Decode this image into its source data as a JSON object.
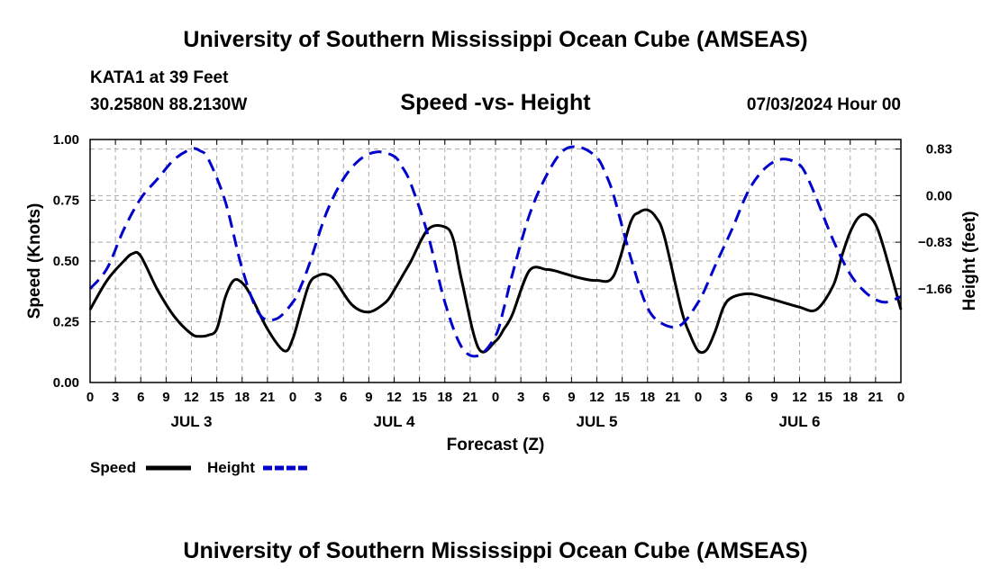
{
  "header": {
    "title": "University of Southern Mississippi Ocean Cube (AMSEAS)",
    "station": "KATA1 at 39 Feet",
    "coordinates": "30.2580N  88.2130W",
    "subtitle": "Speed -vs- Height",
    "forecast_time": "07/03/2024 Hour 00"
  },
  "footer": {
    "title": "University of Southern Mississippi Ocean Cube (AMSEAS)"
  },
  "legend": {
    "speed_label": "Speed",
    "height_label": "Height"
  },
  "colors": {
    "speed": "#000000",
    "height": "#0000cc",
    "grid": "#aaaaaa"
  },
  "chart_data": {
    "type": "line",
    "title": "Speed -vs- Height",
    "xlabel": "Forecast (Z)",
    "ylabel": "Speed (Knots)",
    "y2label": "Height (feet)",
    "x_unit": "hours from 07/03/2024 00Z",
    "xlim": [
      0,
      96
    ],
    "ylim": [
      0,
      1.0
    ],
    "y2lim": [
      -3.33,
      1.0
    ],
    "x_ticks": [
      0,
      3,
      6,
      9,
      12,
      15,
      18,
      21,
      24,
      27,
      30,
      33,
      36,
      39,
      42,
      45,
      48,
      51,
      54,
      57,
      60,
      63,
      66,
      69,
      72,
      75,
      78,
      81,
      84,
      87,
      90,
      93,
      96
    ],
    "x_tick_labels": [
      "0",
      "3",
      "6",
      "9",
      "12",
      "15",
      "18",
      "21",
      "0",
      "3",
      "6",
      "9",
      "12",
      "15",
      "18",
      "21",
      "0",
      "3",
      "6",
      "9",
      "12",
      "15",
      "18",
      "21",
      "0",
      "3",
      "6",
      "9",
      "12",
      "15",
      "18",
      "21",
      "0"
    ],
    "day_labels": [
      {
        "label": "JUL 3",
        "x": 12
      },
      {
        "label": "JUL 4",
        "x": 36
      },
      {
        "label": "JUL 5",
        "x": 60
      },
      {
        "label": "JUL 6",
        "x": 84
      }
    ],
    "y_ticks": [
      0,
      0.25,
      0.5,
      0.75,
      1.0
    ],
    "y_tick_labels": [
      "0.00",
      "0.25",
      "0.50",
      "0.75",
      "1.00"
    ],
    "y2_ticks": [
      0.83,
      0.0,
      -0.83,
      -1.66
    ],
    "y2_tick_labels": [
      "0.83",
      "0.00",
      "−0.83",
      "−1.66"
    ],
    "series": [
      {
        "name": "Speed",
        "axis": "left",
        "style": "solid",
        "x": [
          0,
          2,
          4,
          5,
          6,
          8,
          10,
          12,
          13,
          14,
          15,
          16,
          17,
          18,
          19,
          21,
          23,
          24,
          25,
          26,
          27,
          28,
          29,
          31,
          33,
          35,
          36,
          37,
          38,
          40,
          42,
          43,
          44,
          46,
          48,
          49,
          50,
          52,
          54,
          55,
          56,
          58,
          60,
          62,
          64,
          65,
          66,
          67,
          68,
          70,
          71,
          72,
          73,
          74,
          75,
          76,
          78,
          80,
          82,
          84,
          86,
          88,
          89,
          90,
          91,
          92,
          93,
          94,
          96
        ],
        "values": [
          0.3,
          0.42,
          0.5,
          0.53,
          0.52,
          0.38,
          0.27,
          0.2,
          0.19,
          0.195,
          0.22,
          0.35,
          0.42,
          0.41,
          0.36,
          0.22,
          0.13,
          0.18,
          0.3,
          0.41,
          0.44,
          0.445,
          0.42,
          0.32,
          0.29,
          0.33,
          0.38,
          0.44,
          0.5,
          0.63,
          0.64,
          0.59,
          0.42,
          0.14,
          0.17,
          0.22,
          0.28,
          0.46,
          0.465,
          0.46,
          0.45,
          0.43,
          0.42,
          0.44,
          0.66,
          0.7,
          0.71,
          0.68,
          0.6,
          0.3,
          0.2,
          0.13,
          0.135,
          0.21,
          0.31,
          0.35,
          0.365,
          0.35,
          0.33,
          0.31,
          0.3,
          0.4,
          0.52,
          0.62,
          0.68,
          0.69,
          0.65,
          0.55,
          0.3
        ]
      },
      {
        "name": "Height",
        "axis": "right",
        "style": "dashed",
        "x": [
          0,
          2,
          4,
          6,
          8,
          10,
          12,
          13,
          14,
          16,
          18,
          20,
          22,
          24,
          25,
          26,
          28,
          30,
          32,
          34,
          36,
          37,
          38,
          40,
          42,
          44,
          46,
          48,
          49,
          50,
          52,
          54,
          56,
          58,
          60,
          61,
          62,
          64,
          66,
          68,
          70,
          72,
          73,
          74,
          76,
          78,
          80,
          82,
          84,
          85,
          86,
          88,
          90,
          92,
          94,
          96
        ],
        "values": [
          -1.66,
          -1.3,
          -0.6,
          -0.05,
          0.3,
          0.65,
          0.83,
          0.8,
          0.65,
          -0.1,
          -1.3,
          -2.1,
          -2.2,
          -1.9,
          -1.6,
          -1.2,
          -0.3,
          0.3,
          0.65,
          0.78,
          0.7,
          0.5,
          0.2,
          -0.7,
          -1.9,
          -2.7,
          -2.85,
          -2.5,
          -2.0,
          -1.4,
          -0.35,
          0.35,
          0.8,
          0.86,
          0.68,
          0.4,
          0.0,
          -1.1,
          -2.0,
          -2.3,
          -2.3,
          -1.9,
          -1.6,
          -1.25,
          -0.6,
          0.1,
          0.5,
          0.65,
          0.55,
          0.3,
          -0.05,
          -0.8,
          -1.4,
          -1.75,
          -1.9,
          -1.8
        ]
      }
    ]
  }
}
